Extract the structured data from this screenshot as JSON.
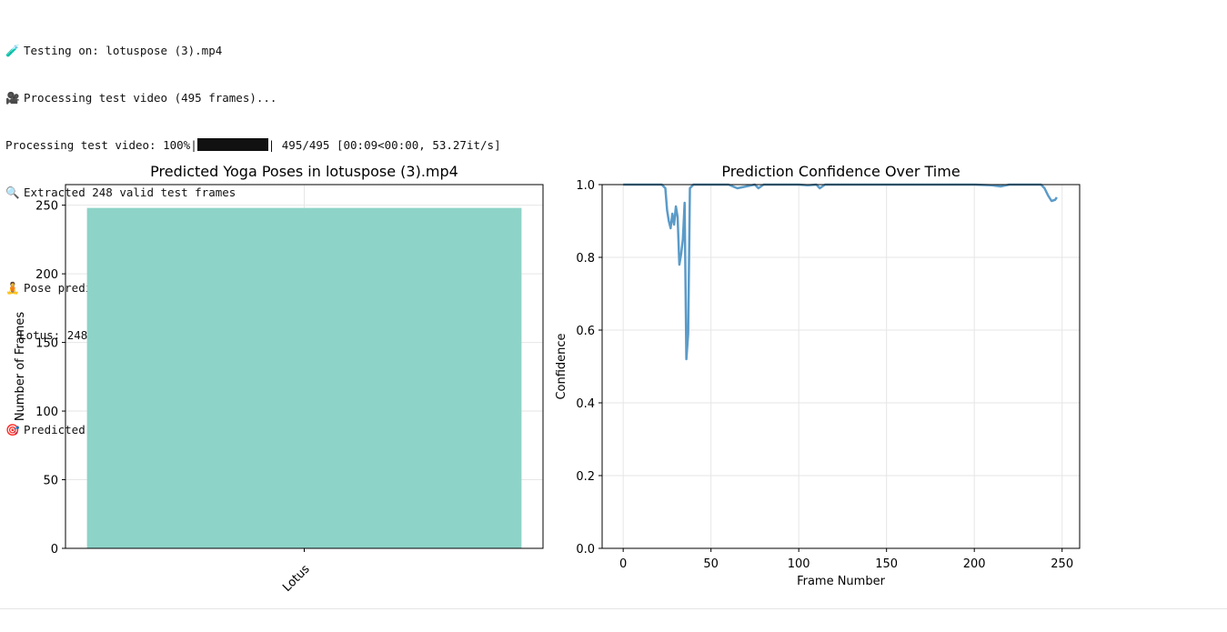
{
  "log": {
    "testing": {
      "icon": "🧪",
      "text": "Testing on: lotuspose (3).mp4"
    },
    "processing": {
      "icon": "🎥",
      "text": "Processing test video (495 frames)..."
    },
    "progress": {
      "prefix": "Processing test video: 100%|",
      "suffix": "| 495/495 [00:09<00:00, 53.27it/s]",
      "percent": 100
    },
    "extracted": {
      "icon": "🔍",
      "text": "Extracted 248 valid test frames"
    },
    "summary": {
      "icon": "🧘",
      "text": "Pose prediction summary:"
    },
    "summary_line": "  Lotus: 248 frames (100.0%)",
    "predicted": {
      "icon": "🎯",
      "text": "Predicted pose: Lotus (confidence: 1.0)"
    }
  },
  "chart_data": [
    {
      "type": "bar",
      "title": "Predicted Yoga Poses in lotuspose (3).mp4",
      "xlabel": "",
      "ylabel": "Number of Frames",
      "categories": [
        "Lotus"
      ],
      "values": [
        248
      ],
      "ylim": [
        0,
        265
      ],
      "yticks": [
        0,
        50,
        100,
        150,
        200,
        250
      ],
      "grid": true,
      "color": "#8dd3c7"
    },
    {
      "type": "line",
      "title": "Prediction Confidence Over Time",
      "xlabel": "Frame Number",
      "ylabel": "Confidence",
      "xlim": [
        -12,
        260
      ],
      "ylim": [
        0,
        1
      ],
      "xticks": [
        0,
        50,
        100,
        150,
        200,
        250
      ],
      "yticks": [
        0.0,
        0.2,
        0.4,
        0.6,
        0.8,
        1.0
      ],
      "ytick_labels": [
        "0.0",
        "0.2",
        "0.4",
        "0.6",
        "0.8",
        "1.0"
      ],
      "grid": true,
      "color": "#5b9bc8",
      "series": [
        {
          "x": [
            0,
            5,
            10,
            15,
            20,
            22,
            24,
            25,
            26,
            27,
            28,
            29,
            30,
            31,
            32,
            33,
            34,
            35,
            36,
            37,
            38,
            40,
            45,
            50,
            55,
            60,
            65,
            70,
            75,
            77,
            80,
            85,
            90,
            95,
            100,
            105,
            110,
            112,
            115,
            120,
            130,
            140,
            150,
            160,
            170,
            180,
            190,
            200,
            210,
            215,
            220,
            225,
            230,
            235,
            238,
            240,
            242,
            244,
            246,
            247
          ],
          "y": [
            1.0,
            1.0,
            1.0,
            1.0,
            1.0,
            1.0,
            0.99,
            0.93,
            0.9,
            0.88,
            0.92,
            0.89,
            0.94,
            0.91,
            0.78,
            0.81,
            0.85,
            0.95,
            0.52,
            0.59,
            0.99,
            1.0,
            1.0,
            1.0,
            1.0,
            1.0,
            0.99,
            0.995,
            1.0,
            0.99,
            1.0,
            1.0,
            1.0,
            1.0,
            1.0,
            0.998,
            1.0,
            0.99,
            1.0,
            1.0,
            1.0,
            1.0,
            1.0,
            1.0,
            1.0,
            1.0,
            1.0,
            1.0,
            0.998,
            0.995,
            1.0,
            1.0,
            1.0,
            1.0,
            1.0,
            0.99,
            0.97,
            0.955,
            0.958,
            0.965
          ]
        }
      ]
    }
  ]
}
